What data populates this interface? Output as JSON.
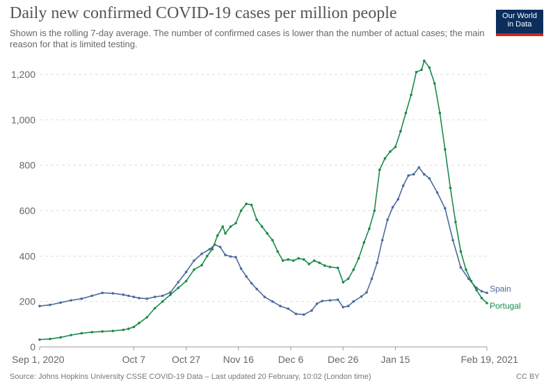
{
  "header": {
    "title": "Daily new confirmed COVID-19 cases per million people",
    "subtitle": "Shown is the rolling 7-day average. The number of confirmed cases is lower than the number of actual cases; the main reason for that is limited testing.",
    "logo_line1": "Our World",
    "logo_line2": "in Data"
  },
  "footer": {
    "source": "Source: Johns Hopkins University CSSE COVID-19 Data – Last updated 20 February, 10:02 (London time)",
    "license": "CC BY"
  },
  "chart_data": {
    "type": "line",
    "ylim": [
      0,
      1250
    ],
    "yticks": [
      0,
      200,
      400,
      600,
      800,
      1000,
      1200
    ],
    "ytick_labels": [
      "0",
      "200",
      "400",
      "600",
      "800",
      "1,000",
      "1,200"
    ],
    "x_start": "2020-09-01",
    "x_end": "2021-02-19",
    "xticks": [
      {
        "date": "2020-09-01",
        "label": "Sep 1, 2020"
      },
      {
        "date": "2020-10-07",
        "label": "Oct 7"
      },
      {
        "date": "2020-10-27",
        "label": "Oct 27"
      },
      {
        "date": "2020-11-16",
        "label": "Nov 16"
      },
      {
        "date": "2020-12-06",
        "label": "Dec 6"
      },
      {
        "date": "2020-12-26",
        "label": "Dec 26"
      },
      {
        "date": "2021-01-15",
        "label": "Jan 15"
      },
      {
        "date": "2021-02-19",
        "label": "Feb 19, 2021"
      }
    ],
    "grid": true,
    "series": [
      {
        "name": "Spain",
        "color": "#4c6a9c",
        "points": [
          [
            "2020-09-01",
            180
          ],
          [
            "2020-09-05",
            185
          ],
          [
            "2020-09-09",
            195
          ],
          [
            "2020-09-13",
            205
          ],
          [
            "2020-09-17",
            212
          ],
          [
            "2020-09-21",
            225
          ],
          [
            "2020-09-25",
            238
          ],
          [
            "2020-09-29",
            236
          ],
          [
            "2020-10-03",
            230
          ],
          [
            "2020-10-05",
            225
          ],
          [
            "2020-10-07",
            220
          ],
          [
            "2020-10-09",
            215
          ],
          [
            "2020-10-12",
            212
          ],
          [
            "2020-10-15",
            220
          ],
          [
            "2020-10-18",
            225
          ],
          [
            "2020-10-21",
            240
          ],
          [
            "2020-10-24",
            285
          ],
          [
            "2020-10-27",
            330
          ],
          [
            "2020-10-30",
            380
          ],
          [
            "2020-11-02",
            410
          ],
          [
            "2020-11-05",
            430
          ],
          [
            "2020-11-07",
            450
          ],
          [
            "2020-11-09",
            440
          ],
          [
            "2020-11-11",
            405
          ],
          [
            "2020-11-13",
            398
          ],
          [
            "2020-11-15",
            395
          ],
          [
            "2020-11-17",
            345
          ],
          [
            "2020-11-19",
            310
          ],
          [
            "2020-11-21",
            280
          ],
          [
            "2020-11-23",
            255
          ],
          [
            "2020-11-26",
            220
          ],
          [
            "2020-11-29",
            200
          ],
          [
            "2020-12-02",
            180
          ],
          [
            "2020-12-05",
            168
          ],
          [
            "2020-12-08",
            145
          ],
          [
            "2020-12-11",
            142
          ],
          [
            "2020-12-14",
            160
          ],
          [
            "2020-12-16",
            190
          ],
          [
            "2020-12-18",
            202
          ],
          [
            "2020-12-21",
            205
          ],
          [
            "2020-12-24",
            208
          ],
          [
            "2020-12-26",
            175
          ],
          [
            "2020-12-28",
            180
          ],
          [
            "2020-12-30",
            200
          ],
          [
            "2021-01-02",
            222
          ],
          [
            "2021-01-04",
            240
          ],
          [
            "2021-01-06",
            300
          ],
          [
            "2021-01-08",
            370
          ],
          [
            "2021-01-10",
            470
          ],
          [
            "2021-01-12",
            560
          ],
          [
            "2021-01-14",
            615
          ],
          [
            "2021-01-16",
            650
          ],
          [
            "2021-01-18",
            710
          ],
          [
            "2021-01-20",
            755
          ],
          [
            "2021-01-22",
            760
          ],
          [
            "2021-01-24",
            790
          ],
          [
            "2021-01-26",
            760
          ],
          [
            "2021-01-28",
            742
          ],
          [
            "2021-01-31",
            680
          ],
          [
            "2021-02-03",
            610
          ],
          [
            "2021-02-06",
            470
          ],
          [
            "2021-02-09",
            350
          ],
          [
            "2021-02-12",
            300
          ],
          [
            "2021-02-15",
            260
          ],
          [
            "2021-02-17",
            245
          ],
          [
            "2021-02-19",
            238
          ]
        ]
      },
      {
        "name": "Portugal",
        "color": "#1a8a4a",
        "points": [
          [
            "2020-09-01",
            32
          ],
          [
            "2020-09-05",
            35
          ],
          [
            "2020-09-09",
            42
          ],
          [
            "2020-09-13",
            52
          ],
          [
            "2020-09-17",
            60
          ],
          [
            "2020-09-21",
            65
          ],
          [
            "2020-09-25",
            68
          ],
          [
            "2020-09-29",
            70
          ],
          [
            "2020-10-03",
            75
          ],
          [
            "2020-10-05",
            80
          ],
          [
            "2020-10-07",
            88
          ],
          [
            "2020-10-09",
            105
          ],
          [
            "2020-10-12",
            130
          ],
          [
            "2020-10-15",
            170
          ],
          [
            "2020-10-18",
            200
          ],
          [
            "2020-10-21",
            230
          ],
          [
            "2020-10-24",
            260
          ],
          [
            "2020-10-27",
            290
          ],
          [
            "2020-10-30",
            340
          ],
          [
            "2020-11-02",
            360
          ],
          [
            "2020-11-04",
            400
          ],
          [
            "2020-11-06",
            430
          ],
          [
            "2020-11-08",
            490
          ],
          [
            "2020-11-10",
            530
          ],
          [
            "2020-11-11",
            500
          ],
          [
            "2020-11-13",
            530
          ],
          [
            "2020-11-15",
            545
          ],
          [
            "2020-11-17",
            600
          ],
          [
            "2020-11-19",
            630
          ],
          [
            "2020-11-21",
            625
          ],
          [
            "2020-11-23",
            560
          ],
          [
            "2020-11-25",
            530
          ],
          [
            "2020-11-27",
            500
          ],
          [
            "2020-11-29",
            470
          ],
          [
            "2020-12-01",
            420
          ],
          [
            "2020-12-03",
            380
          ],
          [
            "2020-12-05",
            385
          ],
          [
            "2020-12-07",
            380
          ],
          [
            "2020-12-09",
            390
          ],
          [
            "2020-12-11",
            385
          ],
          [
            "2020-12-13",
            365
          ],
          [
            "2020-12-15",
            380
          ],
          [
            "2020-12-17",
            370
          ],
          [
            "2020-12-19",
            358
          ],
          [
            "2020-12-21",
            352
          ],
          [
            "2020-12-24",
            348
          ],
          [
            "2020-12-26",
            285
          ],
          [
            "2020-12-28",
            300
          ],
          [
            "2020-12-30",
            340
          ],
          [
            "2021-01-01",
            390
          ],
          [
            "2021-01-03",
            460
          ],
          [
            "2021-01-05",
            520
          ],
          [
            "2021-01-07",
            600
          ],
          [
            "2021-01-09",
            780
          ],
          [
            "2021-01-11",
            830
          ],
          [
            "2021-01-13",
            860
          ],
          [
            "2021-01-15",
            880
          ],
          [
            "2021-01-17",
            950
          ],
          [
            "2021-01-19",
            1030
          ],
          [
            "2021-01-21",
            1110
          ],
          [
            "2021-01-23",
            1210
          ],
          [
            "2021-01-25",
            1220
          ],
          [
            "2021-01-26",
            1260
          ],
          [
            "2021-01-28",
            1230
          ],
          [
            "2021-01-30",
            1160
          ],
          [
            "2021-02-01",
            1030
          ],
          [
            "2021-02-03",
            870
          ],
          [
            "2021-02-05",
            700
          ],
          [
            "2021-02-07",
            550
          ],
          [
            "2021-02-09",
            420
          ],
          [
            "2021-02-11",
            340
          ],
          [
            "2021-02-13",
            290
          ],
          [
            "2021-02-15",
            250
          ],
          [
            "2021-02-17",
            215
          ],
          [
            "2021-02-19",
            193
          ]
        ]
      }
    ]
  }
}
